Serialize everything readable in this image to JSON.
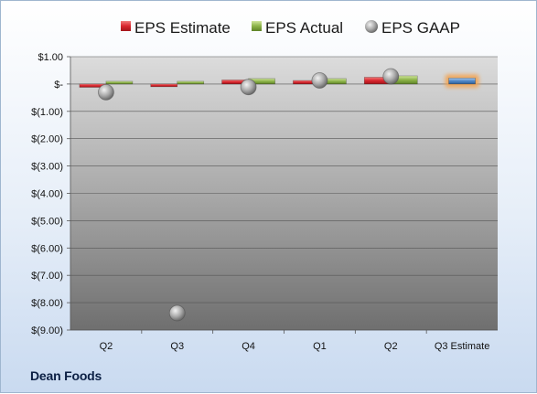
{
  "company": "Dean Foods",
  "colors": {
    "estimate": "#d9262e",
    "actual": "#8cb348",
    "gaap": "#a8a8a8",
    "highlight": "#4f86c6",
    "highlight_glow": "#f5a24b"
  },
  "chart_data": {
    "type": "bar",
    "title": "",
    "xlabel": "",
    "ylabel": "",
    "categories": [
      "Q2",
      "Q3",
      "Q4",
      "Q1",
      "Q2",
      "Q3 Estimate"
    ],
    "ylim": [
      -9,
      1
    ],
    "yticks": [
      1,
      0,
      -1,
      -2,
      -3,
      -4,
      -5,
      -6,
      -7,
      -8,
      -9
    ],
    "ytick_labels": [
      "$1.00",
      "$-",
      "$(1.00)",
      "$(2.00)",
      "$(3.00)",
      "$(4.00)",
      "$(5.00)",
      "$(6.00)",
      "$(7.00)",
      "$(8.00)",
      "$(9.00)"
    ],
    "grid": true,
    "legend_position": "top",
    "series": [
      {
        "name": "EPS Estimate",
        "kind": "bar",
        "values": [
          -0.12,
          -0.1,
          0.15,
          0.13,
          0.25,
          0.22
        ]
      },
      {
        "name": "EPS Actual",
        "kind": "bar",
        "values": [
          0.1,
          0.1,
          0.2,
          0.2,
          0.3,
          null
        ]
      },
      {
        "name": "EPS GAAP",
        "kind": "marker",
        "values": [
          -0.3,
          -8.38,
          -0.11,
          0.13,
          0.28,
          null
        ]
      }
    ]
  }
}
